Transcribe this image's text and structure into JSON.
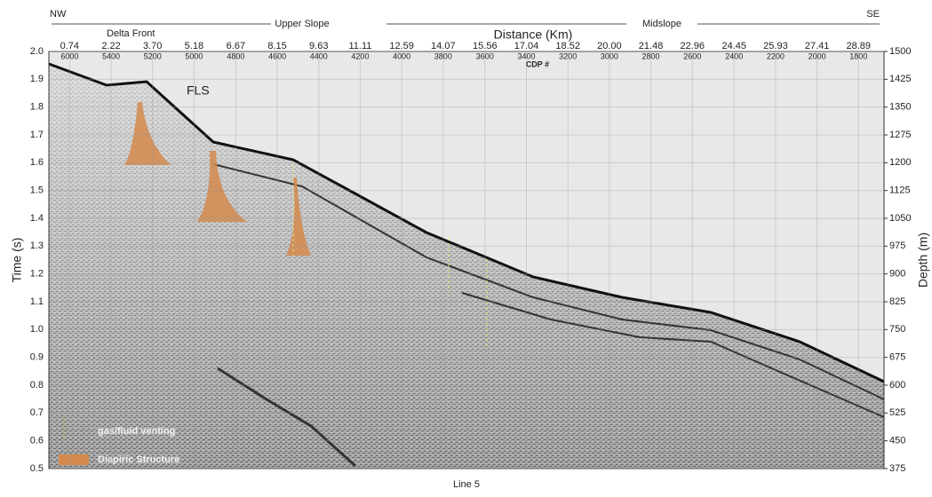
{
  "chart_data": {
    "type": "seismic-section",
    "header": {
      "left": "NW",
      "upper_slope": "Upper Slope",
      "x_label": "Distance (Km)",
      "midslope": "Midslope",
      "right": "SE"
    },
    "annotations": {
      "delta_front": "Delta Front",
      "cdp_label": "CDP #",
      "fls": "FLS"
    },
    "legend": [
      "gas/fluid venting",
      "Diapiric Structure"
    ],
    "y_label": "Time (s)",
    "y2_label": "Depth (m)",
    "caption": "Line 5",
    "xlim": [
      0,
      29.8
    ],
    "xticks": [
      0.74,
      2.22,
      {
        "value": 3.7,
        "label": "3.70"
      },
      5.18,
      6.67,
      8.15,
      9.63,
      11.11,
      12.59,
      14.07,
      15.56,
      17.04,
      18.52,
      {
        "value": 20,
        "label": "20.00"
      },
      21.48,
      22.96,
      24.45,
      25.93,
      27.41,
      28.89
    ],
    "cdp_labels": [
      "6000",
      "5400",
      "5200",
      "5000",
      "4800",
      "4600",
      "4400",
      "4200",
      "4000",
      "3800",
      "3600",
      "3400",
      "3200",
      "3000",
      "2800",
      "2600",
      "2400",
      "2200",
      "2000",
      "1800"
    ],
    "ylim": [
      0.5,
      2.0
    ],
    "yticks": [
      0.5,
      0.6,
      0.7,
      0.8,
      0.9,
      {
        "value": 1,
        "label": "1.0"
      },
      1.1,
      1.2,
      1.3,
      1.4,
      1.5,
      1.6,
      1.7,
      1.8,
      1.9,
      {
        "value": 2,
        "label": "2.0"
      }
    ],
    "y2lim": [
      375,
      1500
    ],
    "y2ticks": [
      375,
      450,
      525,
      600,
      675,
      750,
      825,
      900,
      975,
      1050,
      1125,
      1200,
      1275,
      1350,
      1425,
      1500
    ],
    "grid": true
  }
}
